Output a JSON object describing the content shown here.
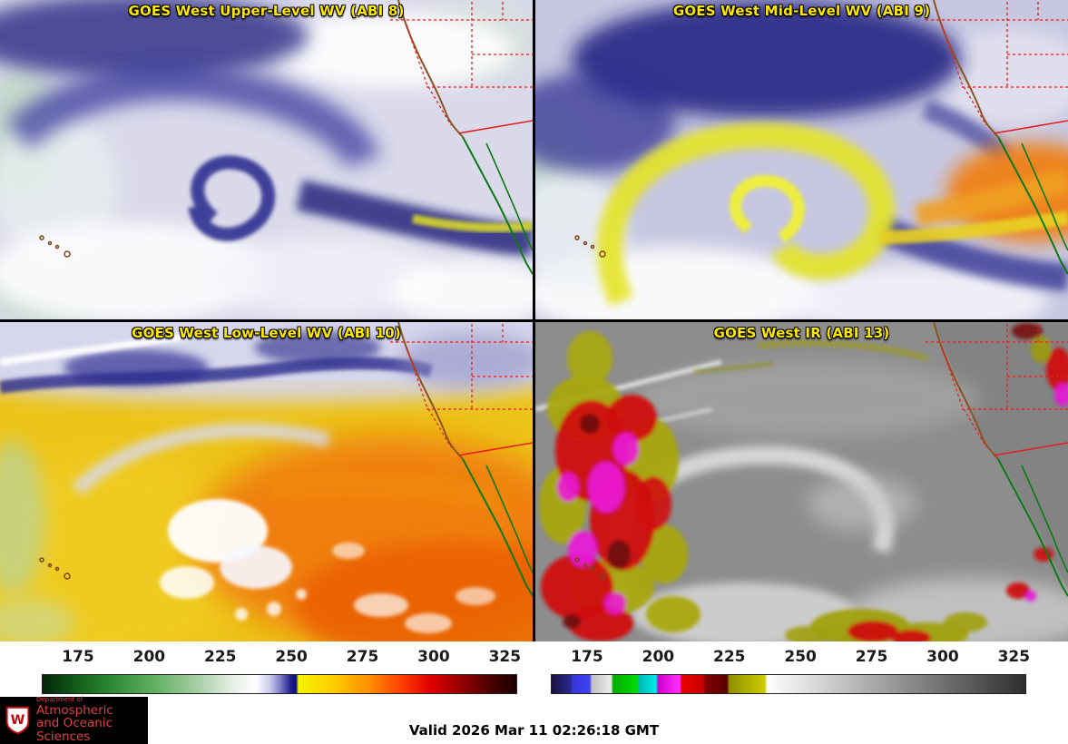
{
  "meta": {
    "title_color": "#ffe800"
  },
  "panels": [
    {
      "title": "GOES West Upper-Level WV (ABI 8)"
    },
    {
      "title": "GOES West Mid-Level WV (ABI 9)"
    },
    {
      "title": "GOES West Low-Level WV (ABI 10)"
    },
    {
      "title": "GOES West IR (ABI 13)"
    }
  ],
  "colorbars": {
    "wv": {
      "ticks": [
        "175",
        "200",
        "225",
        "250",
        "275",
        "300",
        "325"
      ],
      "stops": [
        [
          "0%",
          "#04240a"
        ],
        [
          "7%",
          "#115c18"
        ],
        [
          "15%",
          "#2e8c36"
        ],
        [
          "24%",
          "#63b063"
        ],
        [
          "33%",
          "#a8d0a8"
        ],
        [
          "40%",
          "#e6efe6"
        ],
        [
          "45%",
          "#ffffff"
        ],
        [
          "48%",
          "#c9c9ec"
        ],
        [
          "50%",
          "#8484cc"
        ],
        [
          "52.5%",
          "#1c1c8a"
        ],
        [
          "53.5%",
          "#101078"
        ],
        [
          "54%",
          "#f2f200"
        ],
        [
          "61%",
          "#ffcf00"
        ],
        [
          "69%",
          "#ff8c00"
        ],
        [
          "76%",
          "#ff3c00"
        ],
        [
          "82%",
          "#e00000"
        ],
        [
          "89%",
          "#8c0000"
        ],
        [
          "96%",
          "#3c0000"
        ],
        [
          "100%",
          "#1c0000"
        ]
      ]
    },
    "ir": {
      "ticks": [
        "175",
        "200",
        "225",
        "250",
        "275",
        "300",
        "325"
      ],
      "stops": [
        [
          "0%",
          "#181040"
        ],
        [
          "4%",
          "#282890"
        ],
        [
          "4.5%",
          "#3838e0"
        ],
        [
          "8%",
          "#4040f0"
        ],
        [
          "8.5%",
          "#c0c0c0"
        ],
        [
          "12.5%",
          "#ececec"
        ],
        [
          "13%",
          "#00aa00"
        ],
        [
          "18%",
          "#00dd00"
        ],
        [
          "18.5%",
          "#00b8b8"
        ],
        [
          "22%",
          "#00e8e8"
        ],
        [
          "22.5%",
          "#cc00cc"
        ],
        [
          "27%",
          "#ff30ff"
        ],
        [
          "27.5%",
          "#e80000"
        ],
        [
          "32%",
          "#c80000"
        ],
        [
          "32.5%",
          "#800000"
        ],
        [
          "37%",
          "#580000"
        ],
        [
          "37.5%",
          "#909000"
        ],
        [
          "45%",
          "#cccc00"
        ],
        [
          "45.5%",
          "#ffffff"
        ],
        [
          "100%",
          "#2e2e2e"
        ]
      ]
    }
  },
  "footer": {
    "valid": "Valid 2026 Mar 11 02:26:18 GMT"
  },
  "logo": {
    "monogram": "W",
    "dept": "Department of",
    "line1": "Atmospheric",
    "line2": "and Oceanic Sciences",
    "text_color": "#e04040"
  }
}
